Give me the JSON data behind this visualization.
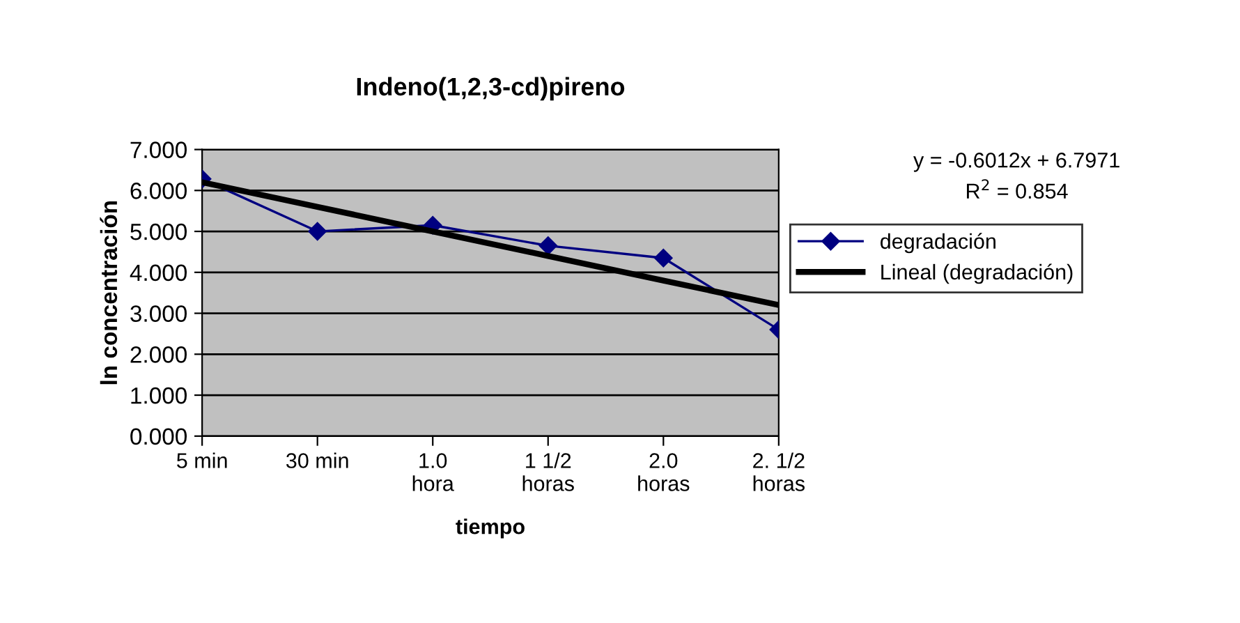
{
  "chart_data": {
    "type": "line",
    "title": "Indeno(1,2,3-cd)pireno",
    "xlabel": "tiempo",
    "ylabel": "ln concentración",
    "categories": [
      "5 min",
      "30 min",
      "1.0\nhora",
      "1 1/2\nhoras",
      "2.0\nhoras",
      "2. 1/2\nhoras"
    ],
    "series": [
      {
        "name": "degradación",
        "color": "#000080",
        "values": [
          6.28,
          5.0,
          5.15,
          4.65,
          4.35,
          2.6
        ],
        "marker": "diamond",
        "line_style": "solid"
      },
      {
        "name": "Lineal (degradación)",
        "color": "#000000",
        "values": [
          6.2,
          5.6,
          5.0,
          4.4,
          3.8,
          3.2
        ],
        "marker": "none",
        "line_style": "solid"
      }
    ],
    "ylim": [
      0,
      7
    ],
    "yticks": [
      {
        "value": 0,
        "label": "0.000"
      },
      {
        "value": 1,
        "label": "1.000"
      },
      {
        "value": 2,
        "label": "2.000"
      },
      {
        "value": 3,
        "label": "3.000"
      },
      {
        "value": 4,
        "label": "4.000"
      },
      {
        "value": 5,
        "label": "5.000"
      },
      {
        "value": 6,
        "label": "6.000"
      },
      {
        "value": 7,
        "label": "7.000"
      }
    ],
    "grid": "y",
    "legend": "right",
    "annotations": [
      "y = -0.6012x + 6.7971",
      "R$^{2}$ = 0.854"
    ]
  }
}
